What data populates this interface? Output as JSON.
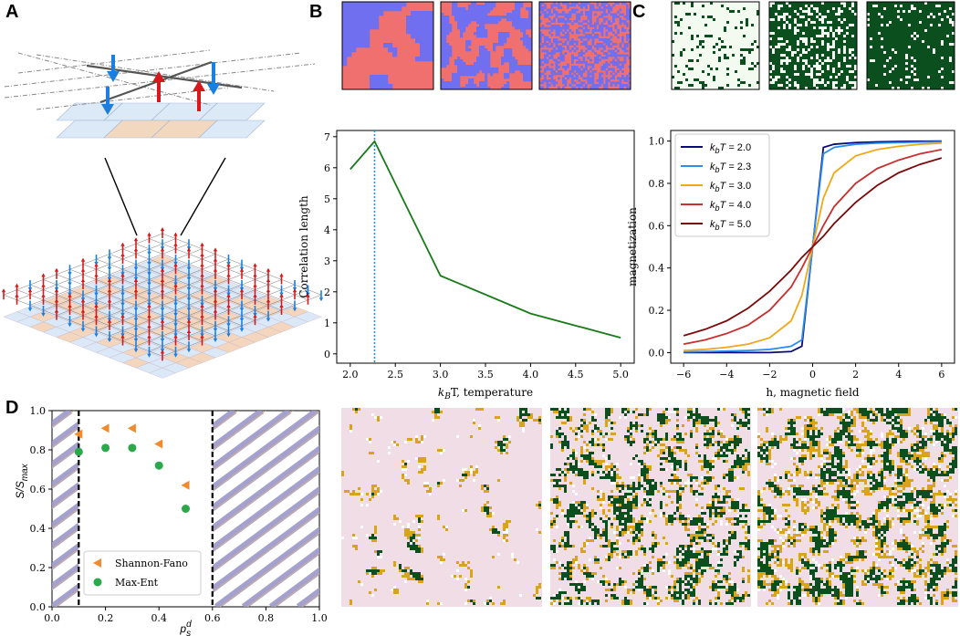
{
  "panel_labels": {
    "a": "A",
    "b": "B",
    "c": "C",
    "d": "D"
  },
  "colors": {
    "spin_up": "#d7191c",
    "spin_down": "#1a7fe0",
    "ising_red": "#f07070",
    "ising_blue": "#6f6ff0",
    "green_dark": "#0b4f1f",
    "green_light": "#eaf5e6",
    "pink": "#f1dde6",
    "gold": "#d9a41a",
    "tile_blue": "#dbe8f7",
    "tile_orange": "#f3d6bd",
    "shannon": "#f28a2e",
    "maxent": "#2aa84a",
    "corr_line": "#1a7a1a",
    "crit_line": "#1f8fd6",
    "stripe": "#9c97c9"
  },
  "chart_data": [
    {
      "id": "correlation",
      "type": "line",
      "x": [
        2.0,
        2.27,
        3.0,
        4.0,
        5.0
      ],
      "y": [
        5.95,
        6.85,
        2.52,
        1.3,
        0.52
      ],
      "critical_temperature": 2.27,
      "xlabel_parts": [
        "k",
        "B",
        "T, temperature"
      ],
      "ylabel": "Correlation length",
      "xlim": [
        1.85,
        5.15
      ],
      "ylim": [
        -0.3,
        7.2
      ],
      "xticks": [
        "2.0",
        "2.5",
        "3.0",
        "3.5",
        "4.0",
        "4.5",
        "5.0"
      ],
      "xtick_values": [
        2.0,
        2.5,
        3.0,
        3.5,
        4.0,
        4.5,
        5.0
      ],
      "yticks": [
        "0",
        "1",
        "2",
        "3",
        "4",
        "5",
        "6",
        "7"
      ],
      "ytick_values": [
        0,
        1,
        2,
        3,
        4,
        5,
        6,
        7
      ]
    },
    {
      "id": "magnetization",
      "type": "line",
      "x": [
        -6,
        -5,
        -4,
        -3,
        -2,
        -1,
        -0.5,
        0,
        0.5,
        1,
        2,
        3,
        4,
        5,
        6
      ],
      "series": [
        {
          "name": "2.0",
          "color": "#0a0a78",
          "values": [
            0.0,
            0.0,
            0.0,
            0.0,
            0.0,
            0.005,
            0.03,
            0.5,
            0.97,
            0.985,
            0.993,
            0.996,
            0.998,
            0.999,
            1.0
          ]
        },
        {
          "name": "2.3",
          "color": "#2a8ef0",
          "values": [
            0.003,
            0.005,
            0.007,
            0.01,
            0.015,
            0.03,
            0.06,
            0.5,
            0.94,
            0.97,
            0.985,
            0.99,
            0.993,
            0.995,
            0.997
          ]
        },
        {
          "name": "3.0",
          "color": "#f0a818",
          "values": [
            0.01,
            0.015,
            0.025,
            0.04,
            0.07,
            0.15,
            0.27,
            0.5,
            0.73,
            0.85,
            0.93,
            0.96,
            0.975,
            0.985,
            0.99
          ]
        },
        {
          "name": "4.0",
          "color": "#c83030",
          "values": [
            0.04,
            0.06,
            0.09,
            0.13,
            0.2,
            0.31,
            0.4,
            0.5,
            0.6,
            0.69,
            0.8,
            0.87,
            0.91,
            0.94,
            0.96
          ]
        },
        {
          "name": "5.0",
          "color": "#7a0a0a",
          "values": [
            0.08,
            0.11,
            0.15,
            0.21,
            0.29,
            0.39,
            0.45,
            0.5,
            0.55,
            0.61,
            0.71,
            0.79,
            0.85,
            0.89,
            0.92
          ]
        }
      ],
      "legend_prefix": "k",
      "legend_sub": "b",
      "legend_mid": "T = ",
      "xlabel": "h, magnetic field",
      "ylabel": "magnetization",
      "xlim": [
        -6.6,
        6.6
      ],
      "ylim": [
        -0.05,
        1.05
      ],
      "xticks": [
        "−6",
        "−4",
        "−2",
        "0",
        "2",
        "4",
        "6"
      ],
      "xtick_values": [
        -6,
        -4,
        -2,
        0,
        2,
        4,
        6
      ],
      "yticks": [
        "0.0",
        "0.2",
        "0.4",
        "0.6",
        "0.8",
        "1.0"
      ],
      "ytick_values": [
        0.0,
        0.2,
        0.4,
        0.6,
        0.8,
        1.0
      ]
    },
    {
      "id": "entropy",
      "type": "scatter",
      "series": [
        {
          "name": "Shannon-Fano",
          "marker": "triangle-left",
          "color": "#f28a2e",
          "x": [
            0.1,
            0.2,
            0.3,
            0.4,
            0.5
          ],
          "y": [
            0.88,
            0.91,
            0.91,
            0.83,
            0.62
          ]
        },
        {
          "name": "Max-Ent",
          "marker": "circle",
          "color": "#2aa84a",
          "x": [
            0.1,
            0.2,
            0.3,
            0.4,
            0.5
          ],
          "y": [
            0.79,
            0.81,
            0.81,
            0.72,
            0.5
          ]
        }
      ],
      "vlines": [
        0.1,
        0.6
      ],
      "xlabel_parts": [
        "p",
        "s",
        "d"
      ],
      "ylabel_parts": [
        "S/S",
        "max"
      ],
      "xlim": [
        0.0,
        1.0
      ],
      "ylim": [
        0.0,
        1.0
      ],
      "xticks": [
        "0.0",
        "0.2",
        "0.4",
        "0.6",
        "0.8",
        "1.0"
      ],
      "xtick_values": [
        0.0,
        0.2,
        0.4,
        0.6,
        0.8,
        1.0
      ],
      "yticks": [
        "0.0",
        "0.2",
        "0.4",
        "0.6",
        "0.8",
        "1.0"
      ],
      "ytick_values": [
        0.0,
        0.2,
        0.4,
        0.6,
        0.8,
        1.0
      ]
    }
  ]
}
